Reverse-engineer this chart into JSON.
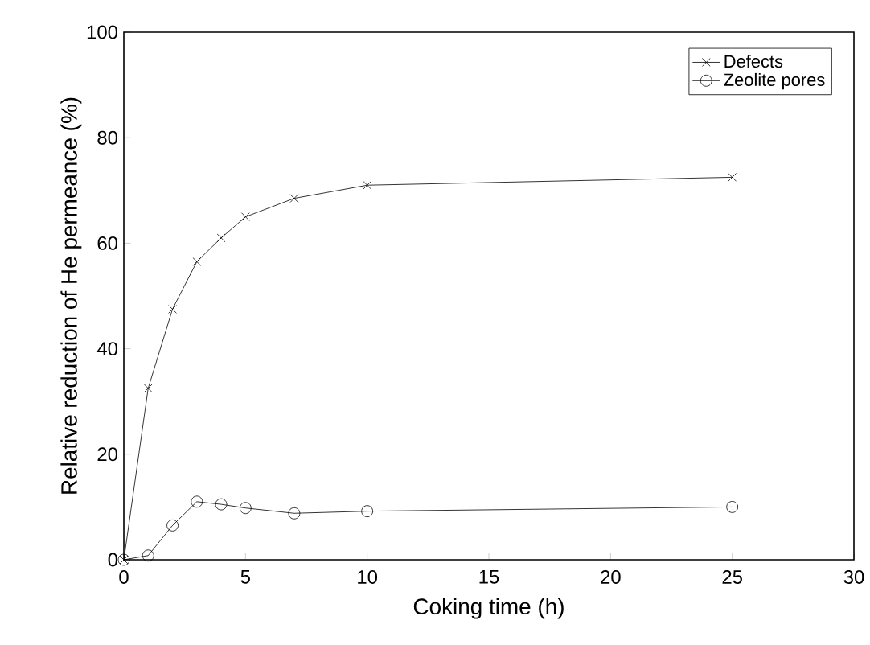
{
  "chart_data": {
    "type": "line",
    "xlabel": "Coking time (h)",
    "ylabel": "Relative reduction of He permeance (%)",
    "xlim": [
      0,
      30
    ],
    "ylim": [
      0,
      100
    ],
    "xticks": [
      0,
      5,
      10,
      15,
      20,
      25,
      30
    ],
    "yticks": [
      0,
      20,
      40,
      60,
      80,
      100
    ],
    "legend": "top right",
    "grid": false,
    "line_style": "solid",
    "series": [
      {
        "name": "Defects",
        "color": "#000000",
        "marker": "cross",
        "x": [
          0,
          1,
          2,
          3,
          4,
          5,
          7,
          10,
          25
        ],
        "values": [
          0,
          32.5,
          47.5,
          56.5,
          61,
          65,
          68.5,
          71,
          72.5
        ]
      },
      {
        "name": "Zeolite pores",
        "color": "#000000",
        "marker": "circle",
        "x": [
          0,
          1,
          2,
          3,
          4,
          5,
          7,
          10,
          25
        ],
        "values": [
          0,
          0.8,
          6.5,
          11,
          10.5,
          9.8,
          8.8,
          9.2,
          10
        ]
      }
    ]
  }
}
